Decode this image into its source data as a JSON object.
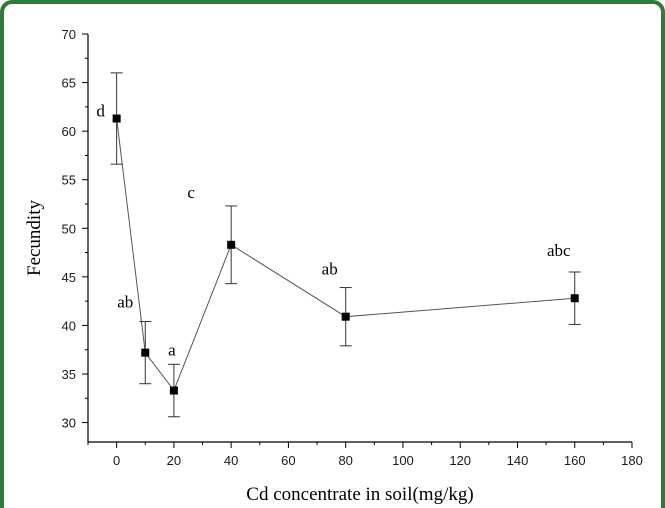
{
  "chart_data": {
    "type": "line",
    "title": "",
    "xlabel": "Cd concentrate in soil(mg/kg)",
    "ylabel": "Fecundity",
    "xlim": [
      -10,
      180
    ],
    "ylim": [
      28,
      70
    ],
    "x_ticks": [
      0,
      20,
      40,
      60,
      80,
      100,
      120,
      140,
      160,
      180
    ],
    "y_ticks": [
      30,
      35,
      40,
      45,
      50,
      55,
      60,
      65,
      70
    ],
    "grid": false,
    "legend": "none",
    "series": [
      {
        "x": [
          0,
          10,
          20,
          40,
          80,
          160
        ],
        "y": [
          61.3,
          37.2,
          33.3,
          48.3,
          40.9,
          42.8
        ],
        "error": [
          4.7,
          3.2,
          2.7,
          4.0,
          3.0,
          2.7
        ],
        "labels": [
          "d",
          "ab",
          "a",
          "c",
          "ab",
          "abc"
        ],
        "color": "#000000",
        "line_color": "#555555"
      }
    ]
  },
  "colors": {
    "frame": "#2d7a3b"
  }
}
